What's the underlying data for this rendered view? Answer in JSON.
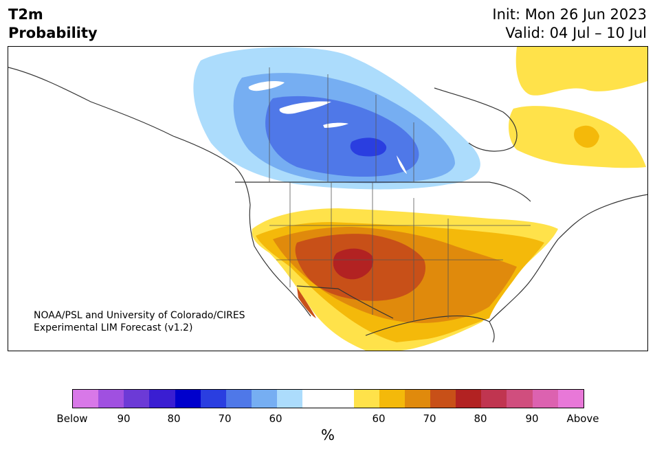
{
  "header": {
    "variable": "T2m",
    "subtitle": "Probability",
    "init": "Init: Mon 26 Jun 2023",
    "valid": "Valid: 04 Jul – 10 Jul"
  },
  "credit": {
    "line1": "NOAA/PSL and University of Colorado/CIRES",
    "line2": "Experimental LIM Forecast (v1.2)"
  },
  "colorbar": {
    "unit": "%",
    "colors": [
      "#d878e8",
      "#a050e0",
      "#6c3ad6",
      "#3a1ed2",
      "#0000cc",
      "#2a3ee0",
      "#4f78e8",
      "#76aef2",
      "#acdcfc",
      "#ffffff",
      "#ffffff",
      "#ffe24a",
      "#f4b90a",
      "#e08a0c",
      "#c85018",
      "#b22222",
      "#c03550",
      "#d04e7e",
      "#dc62b0",
      "#e878d8"
    ],
    "labels": [
      "Below",
      "90",
      "80",
      "70",
      "60",
      "60",
      "70",
      "80",
      "90",
      "Above"
    ]
  },
  "map_colors": {
    "light_blue": "#acdcfc",
    "mid_blue": "#76aef2",
    "blue": "#4f78e8",
    "deep_blue": "#2a3ee0",
    "yellow": "#ffe24a",
    "gold": "#f4b90a",
    "orange": "#e08a0c",
    "dark_orange": "#c85018",
    "red": "#b22222"
  }
}
